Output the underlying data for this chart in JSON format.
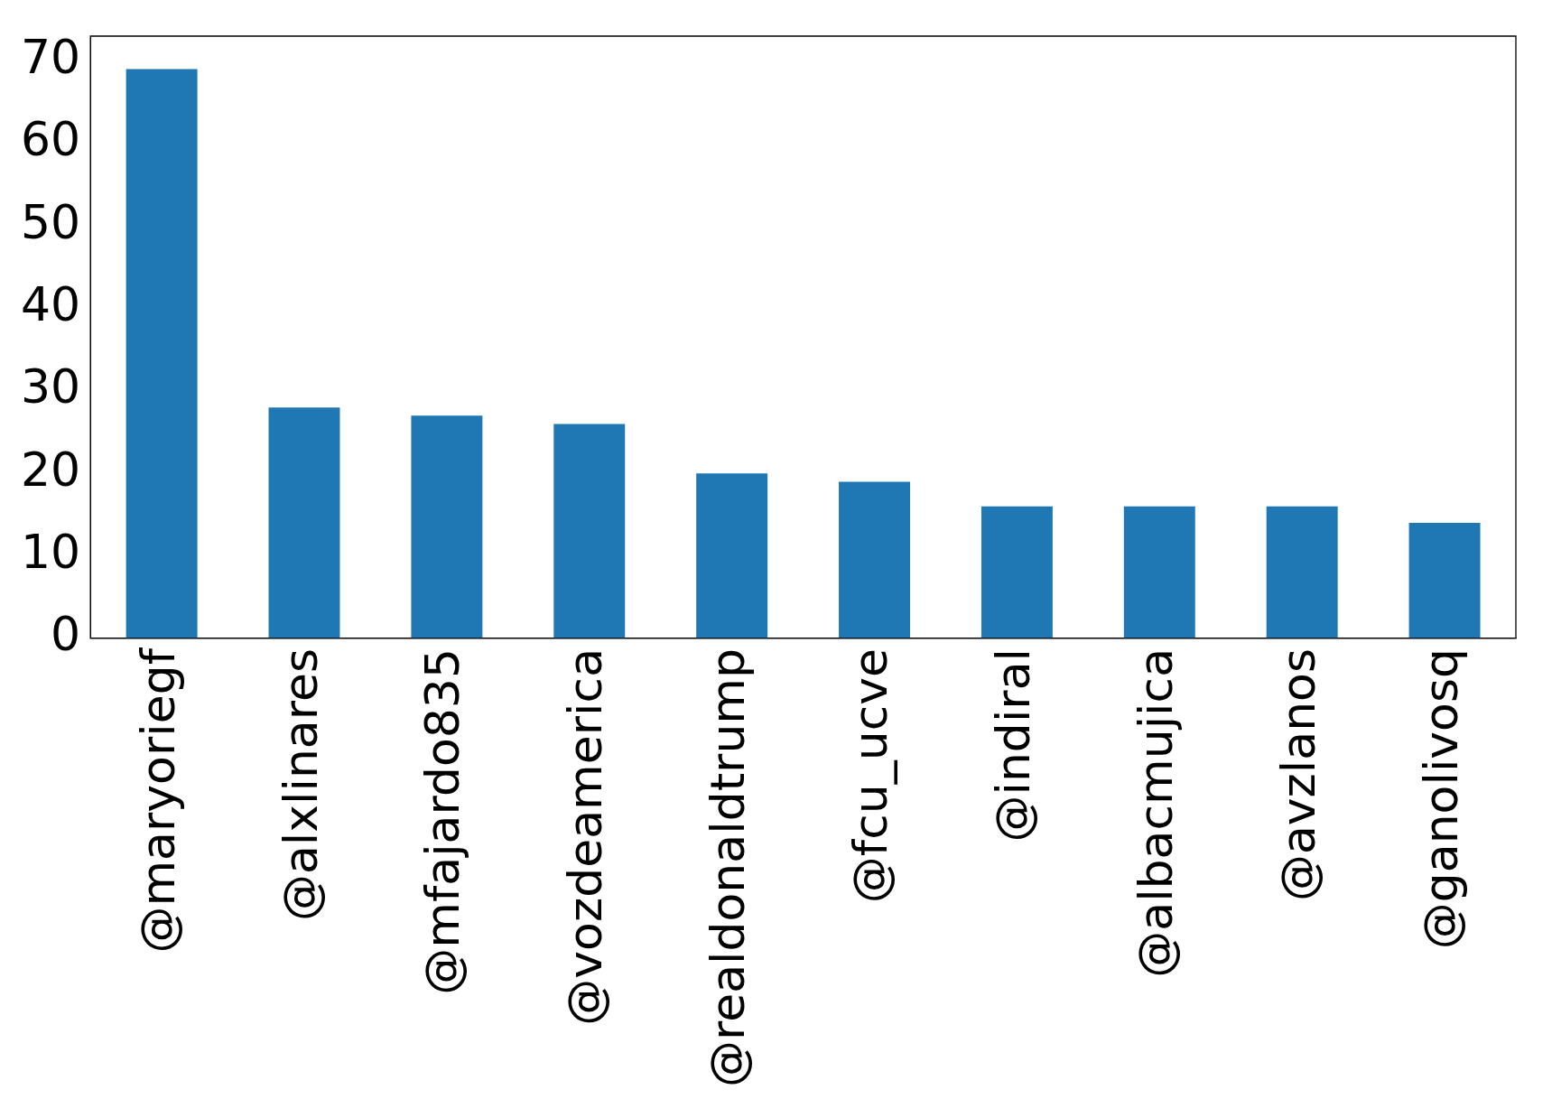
{
  "chart_data": {
    "type": "bar",
    "categories": [
      "@maryoriegf",
      "@alxlinares",
      "@mfajardo835",
      "@vozdeamerica",
      "@realdonaldtrump",
      "@fcu_ucve",
      "@indiral",
      "@albacmujica",
      "@avzlanos",
      "@ganolivosq"
    ],
    "values": [
      69,
      28,
      27,
      26,
      20,
      19,
      16,
      16,
      16,
      14
    ],
    "color": "#1f77b4",
    "ylim": [
      0,
      73
    ],
    "yticks": [
      0,
      10,
      20,
      30,
      40,
      50,
      60,
      70
    ],
    "grid": false,
    "legend": false
  }
}
